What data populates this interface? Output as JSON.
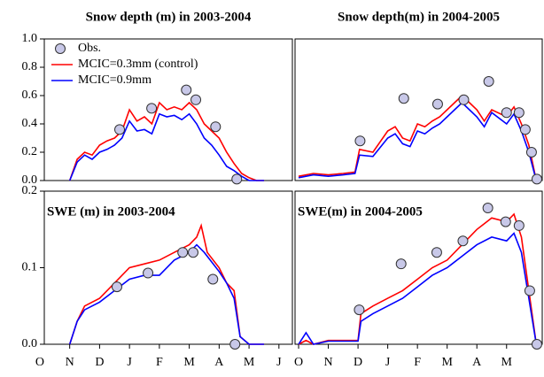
{
  "chart_data": [
    {
      "type": "line",
      "title": "Snow depth (m) in 2003-2004",
      "legend": "upper left",
      "xlim": [
        0.15,
        8.45
      ],
      "ylim": [
        0,
        1
      ],
      "yticks": [
        {
          "value": 0,
          "label": "0.0"
        },
        0.2,
        0.4,
        0.6,
        0.8,
        {
          "value": 1,
          "label": "1.0"
        }
      ],
      "series": [
        {
          "name": "Obs.",
          "mode": "markers",
          "color": "#c8c8e8",
          "x": [
            2.67,
            3.74,
            4.9,
            5.22,
            5.88,
            6.59
          ],
          "values": [
            0.36,
            0.51,
            0.64,
            0.57,
            0.38,
            0.01
          ]
        },
        {
          "name": "MCIC=0.3mm (control)",
          "mode": "lines",
          "color": "#ff0000",
          "x": [
            1.0,
            1.25,
            1.5,
            1.75,
            2.0,
            2.25,
            2.5,
            2.75,
            3.0,
            3.25,
            3.5,
            3.75,
            4.0,
            4.25,
            4.5,
            4.75,
            5.0,
            5.25,
            5.5,
            5.75,
            6.0,
            6.25,
            6.5,
            6.75,
            7.0,
            7.25,
            7.5
          ],
          "values": [
            0,
            0.15,
            0.2,
            0.18,
            0.25,
            0.28,
            0.3,
            0.35,
            0.5,
            0.42,
            0.45,
            0.4,
            0.55,
            0.5,
            0.52,
            0.5,
            0.55,
            0.5,
            0.4,
            0.35,
            0.3,
            0.2,
            0.12,
            0.05,
            0.02,
            0,
            0
          ]
        },
        {
          "name": "MCIC=0.9mm",
          "mode": "lines",
          "color": "#0000ff",
          "x": [
            1.0,
            1.25,
            1.5,
            1.75,
            2.0,
            2.25,
            2.5,
            2.75,
            3.0,
            3.25,
            3.5,
            3.75,
            4.0,
            4.25,
            4.5,
            4.75,
            5.0,
            5.25,
            5.5,
            5.75,
            6.0,
            6.25,
            6.5,
            6.75,
            7.0,
            7.25,
            7.5
          ],
          "values": [
            0,
            0.13,
            0.18,
            0.15,
            0.2,
            0.22,
            0.25,
            0.3,
            0.42,
            0.35,
            0.36,
            0.33,
            0.47,
            0.45,
            0.46,
            0.43,
            0.47,
            0.4,
            0.3,
            0.25,
            0.18,
            0.1,
            0.07,
            0.03,
            0,
            0,
            0
          ]
        }
      ]
    },
    {
      "type": "line",
      "title": "Snow depth(m) in 2004-2005",
      "xlim": [
        -0.12,
        8.2
      ],
      "ylim": [
        0,
        1
      ],
      "series": [
        {
          "mode": "markers",
          "color": "#c8c8e8",
          "x": [
            2.07,
            3.54,
            4.68,
            5.56,
            6.4,
            7.0,
            7.42,
            7.63,
            7.84,
            8.02
          ],
          "values": [
            0.28,
            0.58,
            0.54,
            0.57,
            0.7,
            0.48,
            0.48,
            0.36,
            0.2,
            0.01
          ]
        },
        {
          "mode": "lines",
          "color": "#ff0000",
          "x": [
            0,
            0.5,
            1.0,
            1.5,
            1.9,
            2.05,
            2.5,
            3.0,
            3.25,
            3.5,
            3.75,
            4.0,
            4.25,
            4.5,
            4.75,
            5.0,
            5.25,
            5.5,
            5.75,
            6.0,
            6.25,
            6.5,
            7.0,
            7.25,
            7.5,
            7.75,
            8.0
          ],
          "values": [
            0.03,
            0.05,
            0.04,
            0.05,
            0.06,
            0.22,
            0.2,
            0.35,
            0.38,
            0.3,
            0.28,
            0.4,
            0.38,
            0.42,
            0.45,
            0.5,
            0.55,
            0.6,
            0.55,
            0.5,
            0.42,
            0.5,
            0.45,
            0.52,
            0.4,
            0.25,
            0
          ]
        },
        {
          "mode": "lines",
          "color": "#0000ff",
          "x": [
            0,
            0.5,
            1.0,
            1.5,
            1.9,
            2.05,
            2.5,
            3.0,
            3.25,
            3.5,
            3.75,
            4.0,
            4.25,
            4.5,
            4.75,
            5.0,
            5.25,
            5.5,
            5.75,
            6.0,
            6.25,
            6.5,
            7.0,
            7.25,
            7.5,
            7.75,
            8.0
          ],
          "values": [
            0.02,
            0.04,
            0.03,
            0.04,
            0.05,
            0.18,
            0.17,
            0.3,
            0.33,
            0.26,
            0.24,
            0.35,
            0.33,
            0.37,
            0.4,
            0.45,
            0.5,
            0.55,
            0.5,
            0.45,
            0.38,
            0.48,
            0.4,
            0.47,
            0.35,
            0.2,
            0
          ]
        }
      ]
    },
    {
      "type": "line",
      "title": "SWE (m) in 2003-2004",
      "xlim": [
        0.15,
        8.45
      ],
      "ylim": [
        0,
        0.2
      ],
      "yticks": [
        {
          "value": 0,
          "label": "0.0"
        },
        0.1,
        0.2
      ],
      "xticks": [
        {
          "value": 0,
          "label": "O"
        },
        {
          "value": 1,
          "label": "N"
        },
        {
          "value": 2,
          "label": "D"
        },
        {
          "value": 3,
          "label": "J"
        },
        {
          "value": 4,
          "label": "F"
        },
        {
          "value": 5,
          "label": "M"
        },
        {
          "value": 6,
          "label": "A"
        },
        {
          "value": 7,
          "label": "M"
        },
        {
          "value": 8,
          "label": "J"
        }
      ],
      "series": [
        {
          "mode": "markers",
          "color": "#c8c8e8",
          "x": [
            2.58,
            3.62,
            4.78,
            5.13,
            5.79,
            6.53
          ],
          "values": [
            0.075,
            0.093,
            0.12,
            0.12,
            0.085,
            0
          ]
        },
        {
          "mode": "lines",
          "color": "#ff0000",
          "x": [
            1.0,
            1.25,
            1.5,
            2.0,
            2.5,
            3.0,
            3.5,
            4.0,
            4.5,
            5.0,
            5.25,
            5.4,
            5.6,
            6.0,
            6.25,
            6.5,
            6.7,
            7.0,
            7.5
          ],
          "values": [
            0,
            0.03,
            0.05,
            0.06,
            0.08,
            0.1,
            0.105,
            0.11,
            0.12,
            0.13,
            0.14,
            0.155,
            0.12,
            0.1,
            0.08,
            0.07,
            0.01,
            0,
            0
          ]
        },
        {
          "mode": "lines",
          "color": "#0000ff",
          "x": [
            1.0,
            1.25,
            1.5,
            2.0,
            2.5,
            3.0,
            3.5,
            4.0,
            4.5,
            5.0,
            5.25,
            5.5,
            6.0,
            6.25,
            6.5,
            6.7,
            7.0,
            7.5
          ],
          "values": [
            0,
            0.03,
            0.045,
            0.055,
            0.07,
            0.085,
            0.09,
            0.09,
            0.11,
            0.12,
            0.13,
            0.12,
            0.095,
            0.08,
            0.06,
            0.01,
            0,
            0
          ]
        }
      ]
    },
    {
      "type": "line",
      "title": "SWE(m) in 2004-2005",
      "xlim": [
        -0.12,
        8.2
      ],
      "ylim": [
        0,
        0.2
      ],
      "xticks": [
        {
          "value": 0,
          "label": "O"
        },
        {
          "value": 1,
          "label": "N"
        },
        {
          "value": 2,
          "label": "D"
        },
        {
          "value": 3,
          "label": "J"
        },
        {
          "value": 4,
          "label": "F"
        },
        {
          "value": 5,
          "label": "M"
        },
        {
          "value": 6,
          "label": "A"
        },
        {
          "value": 7,
          "label": "M"
        }
      ],
      "series": [
        {
          "mode": "markers",
          "color": "#c8c8e8",
          "x": [
            2.04,
            3.45,
            4.65,
            5.53,
            6.37,
            6.97,
            7.42,
            7.78,
            8.02
          ],
          "values": [
            0.045,
            0.105,
            0.12,
            0.135,
            0.178,
            0.16,
            0.155,
            0.07,
            0
          ]
        },
        {
          "mode": "lines",
          "color": "#ff0000",
          "x": [
            0,
            0.25,
            0.5,
            1.0,
            1.5,
            2.0,
            2.1,
            2.5,
            3.0,
            3.5,
            4.0,
            4.5,
            5.0,
            5.5,
            6.0,
            6.5,
            7.0,
            7.25,
            7.5,
            7.75,
            8.0
          ],
          "values": [
            0,
            0.005,
            0,
            0.005,
            0.005,
            0.005,
            0.04,
            0.05,
            0.06,
            0.07,
            0.085,
            0.1,
            0.11,
            0.13,
            0.15,
            0.165,
            0.16,
            0.17,
            0.14,
            0.07,
            0
          ]
        },
        {
          "mode": "lines",
          "color": "#0000ff",
          "x": [
            0,
            0.25,
            0.5,
            1.0,
            1.5,
            2.0,
            2.1,
            2.5,
            3.0,
            3.5,
            4.0,
            4.5,
            5.0,
            5.5,
            6.0,
            6.5,
            7.0,
            7.25,
            7.5,
            7.75,
            8.0
          ],
          "values": [
            0,
            0.015,
            0,
            0.004,
            0.004,
            0.004,
            0.03,
            0.04,
            0.05,
            0.06,
            0.075,
            0.09,
            0.1,
            0.115,
            0.13,
            0.14,
            0.135,
            0.145,
            0.12,
            0.06,
            0
          ]
        }
      ]
    }
  ]
}
